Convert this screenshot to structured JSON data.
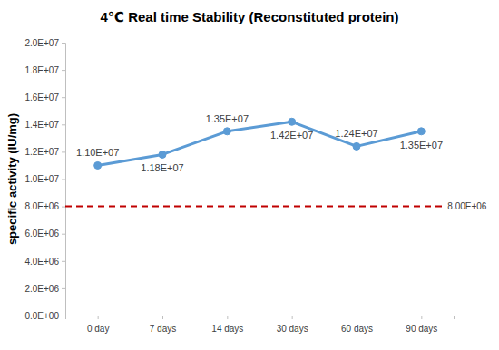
{
  "chart_data": {
    "type": "line",
    "title": "4℃ Real time Stability (Reconstituted protein)",
    "y_label": "specific activity (IU/mg)",
    "categories": [
      "0 day",
      "7 days",
      "14 days",
      "30 days",
      "60 days",
      "90 days"
    ],
    "values": [
      11000000,
      11800000,
      13500000,
      14200000,
      12400000,
      13500000
    ],
    "value_labels": [
      "1.10E+07",
      "1.18E+07",
      "1.35E+07",
      "1.42E+07",
      "1.24E+07",
      "1.35E+07"
    ],
    "data_labels": true,
    "color": "#5b9bd5",
    "marker": "circle",
    "ylim": [
      0,
      20000000
    ],
    "yticks": [
      {
        "value": 0,
        "label": "0.0E+00"
      },
      {
        "value": 2000000,
        "label": "2.0E+06"
      },
      {
        "value": 4000000,
        "label": "4.0E+06"
      },
      {
        "value": 6000000,
        "label": "6.0E+06"
      },
      {
        "value": 8000000,
        "label": "8.0E+06"
      },
      {
        "value": 10000000,
        "label": "1.0E+07"
      },
      {
        "value": 12000000,
        "label": "1.2E+07"
      },
      {
        "value": 14000000,
        "label": "1.4E+07"
      },
      {
        "value": 16000000,
        "label": "1.6E+07"
      },
      {
        "value": 18000000,
        "label": "1.8E+07"
      },
      {
        "value": 20000000,
        "label": "2.0E+07"
      }
    ],
    "grid": false,
    "annotations": [
      {
        "value": 8000000,
        "label": "8.00E+06",
        "color": "#c00000",
        "line_style": "dashed"
      }
    ]
  }
}
